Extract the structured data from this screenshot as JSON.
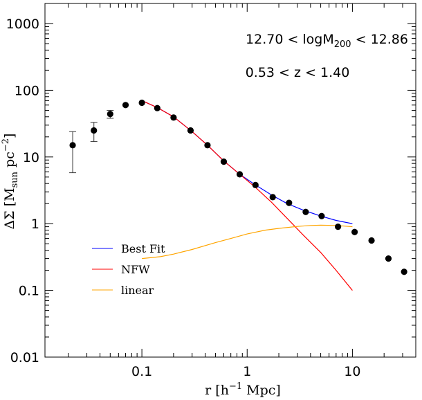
{
  "chart_data": {
    "type": "scatter",
    "xscale": "log",
    "yscale": "log",
    "xlim": [
      0.012,
      40
    ],
    "ylim": [
      0.01,
      2000
    ],
    "x_ticks": [
      0.1,
      1,
      10
    ],
    "x_tick_labels": [
      "0.1",
      "1",
      "10"
    ],
    "y_ticks": [
      0.01,
      0.1,
      1,
      10,
      100,
      1000
    ],
    "y_tick_labels": [
      "0.01",
      "0.1",
      "1",
      "10",
      "100",
      "1000"
    ],
    "xlabel": {
      "main": "r  [h",
      "sup": "−1",
      "tail": " Mpc]"
    },
    "ylabel": {
      "main": "ΔΣ  [M",
      "sub": "sun",
      "mid": "  pc",
      "sup": "−2",
      "tail": "]"
    },
    "annotations": [
      {
        "pre": "12.70  <  logM",
        "sub": "200",
        "post": "  <  12.86"
      },
      {
        "text": "0.53  <  z  <  1.40"
      }
    ],
    "legend": {
      "position": "bottom-left",
      "entries": [
        {
          "label": "Best Fit",
          "color": "#0000ff"
        },
        {
          "label": "NFW",
          "color": "#ff0000"
        },
        {
          "label": "linear",
          "color": "#ffa500"
        }
      ]
    },
    "data_points": {
      "color": "#000000",
      "points": [
        {
          "x": 0.022,
          "y": 15,
          "err": [
            5.8,
            24
          ]
        },
        {
          "x": 0.035,
          "y": 25,
          "err": [
            17,
            33
          ]
        },
        {
          "x": 0.05,
          "y": 44,
          "err": [
            38,
            50
          ]
        },
        {
          "x": 0.07,
          "y": 60
        },
        {
          "x": 0.1,
          "y": 65
        },
        {
          "x": 0.14,
          "y": 54
        },
        {
          "x": 0.2,
          "y": 39
        },
        {
          "x": 0.29,
          "y": 25
        },
        {
          "x": 0.42,
          "y": 15
        },
        {
          "x": 0.6,
          "y": 8.5
        },
        {
          "x": 0.85,
          "y": 5.5
        },
        {
          "x": 1.2,
          "y": 3.8
        },
        {
          "x": 1.75,
          "y": 2.5
        },
        {
          "x": 2.5,
          "y": 2.05
        },
        {
          "x": 3.6,
          "y": 1.5
        },
        {
          "x": 5.1,
          "y": 1.3
        },
        {
          "x": 7.3,
          "y": 0.9
        },
        {
          "x": 10.5,
          "y": 0.75
        },
        {
          "x": 15.2,
          "y": 0.56
        },
        {
          "x": 22,
          "y": 0.3
        },
        {
          "x": 31,
          "y": 0.19
        }
      ]
    },
    "series": [
      {
        "name": "Best Fit",
        "color": "#0000ff",
        "x": [
          0.1,
          0.14,
          0.2,
          0.3,
          0.42,
          0.6,
          0.85,
          1.2,
          1.7,
          2.4,
          3.4,
          5,
          7,
          10
        ],
        "y": [
          70,
          55,
          40,
          24,
          15,
          8.7,
          5.5,
          3.8,
          2.7,
          2.0,
          1.6,
          1.3,
          1.12,
          1.0
        ]
      },
      {
        "name": "NFW",
        "color": "#ff0000",
        "x": [
          0.1,
          0.14,
          0.2,
          0.3,
          0.42,
          0.6,
          0.85,
          1.2,
          1.7,
          2.4,
          3.4,
          5,
          7,
          10
        ],
        "y": [
          70,
          55,
          40,
          24,
          15,
          8.7,
          5.5,
          3.5,
          2.1,
          1.2,
          0.68,
          0.37,
          0.2,
          0.1
        ]
      },
      {
        "name": "linear",
        "color": "#ffa500",
        "x": [
          0.1,
          0.15,
          0.2,
          0.3,
          0.5,
          0.7,
          1,
          1.5,
          2,
          3,
          4,
          5,
          7,
          10
        ],
        "y": [
          0.3,
          0.32,
          0.35,
          0.41,
          0.52,
          0.6,
          0.7,
          0.8,
          0.85,
          0.91,
          0.94,
          0.95,
          0.94,
          0.9
        ]
      }
    ]
  }
}
